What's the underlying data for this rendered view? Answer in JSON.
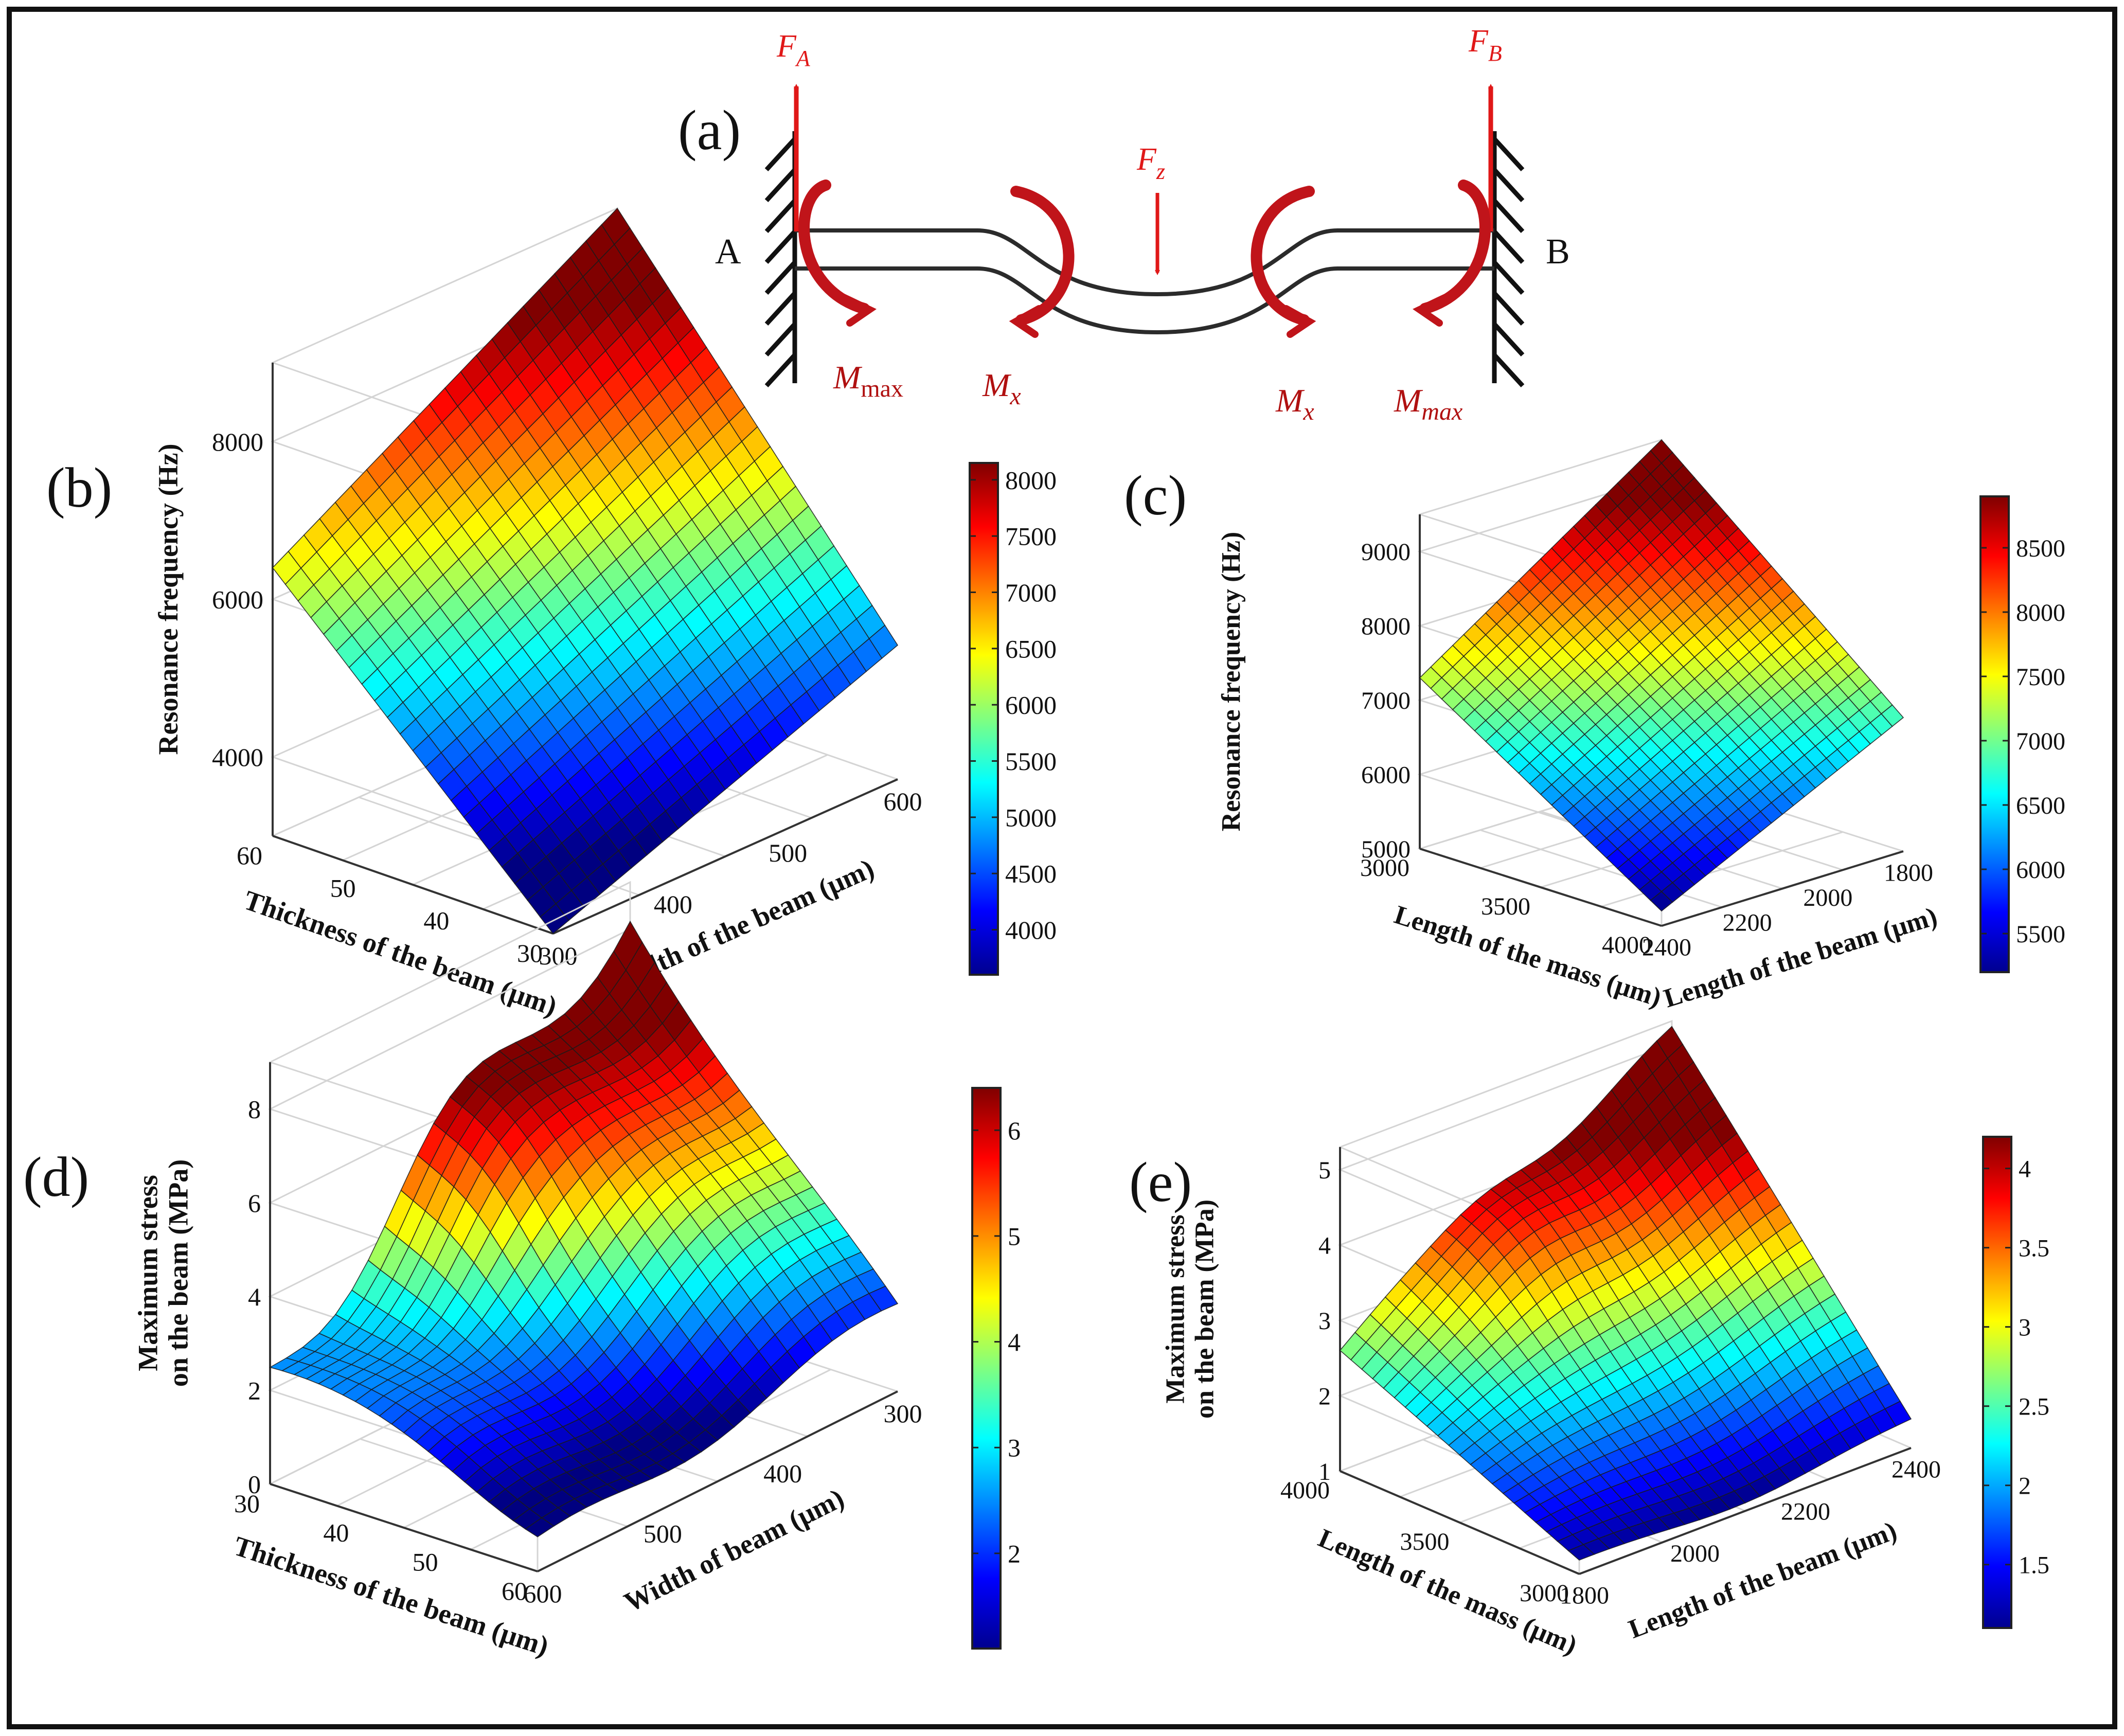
{
  "figure": {
    "panel_labels": {
      "a": "(a)",
      "b": "(b)",
      "c": "(c)",
      "d": "(d)",
      "e": "(e)"
    },
    "beam_diagram": {
      "support_a": "A",
      "support_b": "B",
      "force_a": {
        "main": "F",
        "sub": "A"
      },
      "force_b": {
        "main": "F",
        "sub": "B"
      },
      "force_z": {
        "main": "F",
        "sub": "z"
      },
      "moment_left_max": {
        "main": "M",
        "sub": "max"
      },
      "moment_left_x": {
        "main": "M",
        "sub": "x"
      },
      "moment_right_x": {
        "main": "M",
        "sub": "x"
      },
      "moment_right_max": {
        "main": "M",
        "sub": "max"
      },
      "colors": {
        "force": "#e01818",
        "moment": "#c0141a",
        "moment_text": "#b01010",
        "beam": "#2b2b2b"
      }
    }
  },
  "chart_data": [
    {
      "id": "b",
      "type": "surface",
      "zlabel": "Resonance frequency (Hz)",
      "xlabel": "Thickness of the beam (μm)",
      "ylabel": "Width of the beam (μm)",
      "xticks": [
        "60",
        "50",
        "40",
        "30"
      ],
      "yticks": [
        "300",
        "400",
        "500",
        "600"
      ],
      "zticks": [
        "4000",
        "6000",
        "8000"
      ],
      "zrange": [
        3000,
        9000
      ],
      "colorbar": {
        "ticks": [
          "4000",
          "4500",
          "5000",
          "5500",
          "6000",
          "6500",
          "7000",
          "7500",
          "8000"
        ],
        "range": [
          3600,
          8150
        ]
      },
      "corners": {
        "back_left": 6400,
        "back_right": 9000,
        "front_left": 3000,
        "front_right": 4700
      }
    },
    {
      "id": "c",
      "type": "surface",
      "zlabel": "Resonance frequency (Hz)",
      "xlabel": "Length of the mass (μm)",
      "ylabel": "Length of the beam (μm)",
      "xticks": [
        "3000",
        "3500",
        "4000"
      ],
      "yticks": [
        "2400",
        "2200",
        "2000",
        "1800"
      ],
      "zticks": [
        "5000",
        "6000",
        "7000",
        "8000",
        "9000"
      ],
      "zrange": [
        5000,
        9500
      ],
      "colorbar": {
        "ticks": [
          "5500",
          "6000",
          "6500",
          "7000",
          "7500",
          "8000",
          "8500"
        ],
        "range": [
          5200,
          8900
        ]
      },
      "corners": {
        "back_left": 7300,
        "back_right": 9500,
        "front_left": 5200,
        "front_right": 6800
      }
    },
    {
      "id": "d",
      "type": "surface",
      "zlabel": "Maximum stress on the beam (MPa)",
      "xlabel": "Thickness of the beam (μm)",
      "ylabel": "Width of beam (μm)",
      "xticks": [
        "30",
        "40",
        "50",
        "60"
      ],
      "yticks": [
        "600",
        "500",
        "400",
        "300"
      ],
      "zticks": [
        "0",
        "2",
        "4",
        "6",
        "8"
      ],
      "zrange": [
        0,
        9
      ],
      "colorbar": {
        "ticks": [
          "2",
          "3",
          "4",
          "5",
          "6"
        ],
        "range": [
          1.1,
          6.4
        ]
      },
      "corners": {
        "back_left": 2.4,
        "back_right": 8.5,
        "front_left": 0.9,
        "front_right": 1.8
      }
    },
    {
      "id": "e",
      "type": "surface",
      "zlabel": "Maximum stress on the beam (MPa)",
      "xlabel": "Length of the mass (μm)",
      "ylabel": "Length of the beam (μm)",
      "xticks": [
        "4000",
        "3500",
        "3000"
      ],
      "yticks": [
        "1800",
        "2000",
        "2200",
        "2400"
      ],
      "zticks": [
        "1",
        "2",
        "3",
        "4",
        "5"
      ],
      "zrange": [
        1,
        5.3
      ],
      "colorbar": {
        "ticks": [
          "1.5",
          "2",
          "2.5",
          "3",
          "3.5",
          "4"
        ],
        "range": [
          1.1,
          4.2
        ]
      },
      "corners": {
        "back_left": 2.6,
        "back_right": 5.1,
        "front_left": 1.2,
        "front_right": 1.4
      }
    }
  ]
}
